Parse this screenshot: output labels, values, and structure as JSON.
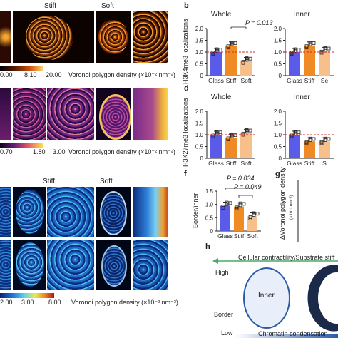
{
  "left": {
    "row1": {
      "header_stiff": "Stiff",
      "header_soft": "Soft",
      "colorbar_ticks": [
        "0.00",
        "8.10",
        "20.00"
      ],
      "colorbar_label": "Voronoi polygon density (×10⁻² nm⁻²)"
    },
    "row2": {
      "colorbar_ticks": [
        "0.70",
        "1.80",
        "3.00"
      ],
      "colorbar_label": "Voronoi polygon density (×10⁻² nm⁻²)"
    },
    "row3": {
      "header_stiff": "Stiff",
      "header_soft": "Soft",
      "colorbar_ticks": [
        "2.00",
        "3.00",
        "8.00"
      ],
      "colorbar_label": "Voronoi polygon density (×10⁻² nm⁻²)"
    }
  },
  "panels": {
    "b": "b",
    "d": "d",
    "f": "f",
    "g": "g",
    "h": "h"
  },
  "panel_b": {
    "ylabel": "H3K4me3 localizations",
    "left_title": "Whole",
    "right_title": "Inner",
    "pvalue": "P = 0.013",
    "yticks": [
      "0",
      "0.5",
      "1.0",
      "1.5",
      "2.0"
    ],
    "xticks_left": [
      "Glass",
      "Stiff",
      "Soft"
    ],
    "xticks_right": [
      "Glass",
      "Stiff",
      "Se"
    ]
  },
  "panel_d": {
    "ylabel": "H3K27me3 localizations",
    "left_title": "Whole",
    "right_title": "Inner",
    "yticks": [
      "0",
      "0.5",
      "1.0",
      "1.5",
      "2.0"
    ],
    "xticks_left": [
      "Glass",
      "Stiff",
      "Soft"
    ],
    "xticks_right": [
      "Glass",
      "Stiff",
      "S"
    ]
  },
  "panel_f": {
    "ylabel": "Border/inner",
    "p1": "P = 0.034",
    "p2": "P = 0.049",
    "yticks": [
      "0",
      "0.5",
      "1.0",
      "1.5"
    ],
    "xticks": [
      "Glass",
      "Stiff",
      "Soft"
    ]
  },
  "panel_g": {
    "ylabel": "ΔVoronoi polygon density",
    "ylabel_unit": "(×10⁻² nm⁻²)"
  },
  "panel_h": {
    "top_arrow_label": "Cellular contractility/Substrate stiff",
    "high": "High",
    "low": "Low",
    "border": "Border",
    "inner": "Inner",
    "bottom_label": "Chromatin condensation"
  },
  "colors": {
    "glass": "#5b5bea",
    "stiff": "#f08a24",
    "soft": "#f7c08a",
    "reference_line": "#d62728"
  },
  "chart_data": [
    {
      "type": "bar",
      "id": "b-whole",
      "title": "Whole",
      "categories": [
        "Glass",
        "Stiff",
        "Soft"
      ],
      "values": [
        1.0,
        1.28,
        0.62
      ],
      "ylabel": "H3K4me3 localizations",
      "ylim": [
        0,
        2.0
      ]
    },
    {
      "type": "bar",
      "id": "b-inner",
      "title": "Inner",
      "categories": [
        "Glass",
        "Stiff",
        "Se"
      ],
      "values": [
        1.0,
        1.28,
        1.05
      ],
      "ylim": [
        0,
        2.0
      ]
    },
    {
      "type": "bar",
      "id": "d-whole",
      "title": "Whole",
      "categories": [
        "Glass",
        "Stiff",
        "Soft"
      ],
      "values": [
        1.0,
        0.88,
        1.08
      ],
      "ylabel": "H3K27me3 localizations",
      "ylim": [
        0,
        2.0
      ]
    },
    {
      "type": "bar",
      "id": "d-inner",
      "title": "Inner",
      "categories": [
        "Glass",
        "Stiff",
        "S"
      ],
      "values": [
        1.0,
        0.72,
        0.72
      ],
      "ylim": [
        0,
        2.0
      ]
    },
    {
      "type": "bar",
      "id": "f",
      "categories": [
        "Glass",
        "Stiff",
        "Soft"
      ],
      "values": [
        0.95,
        0.92,
        0.55
      ],
      "ylabel": "Border/inner",
      "ylim": [
        0,
        1.5
      ]
    }
  ]
}
